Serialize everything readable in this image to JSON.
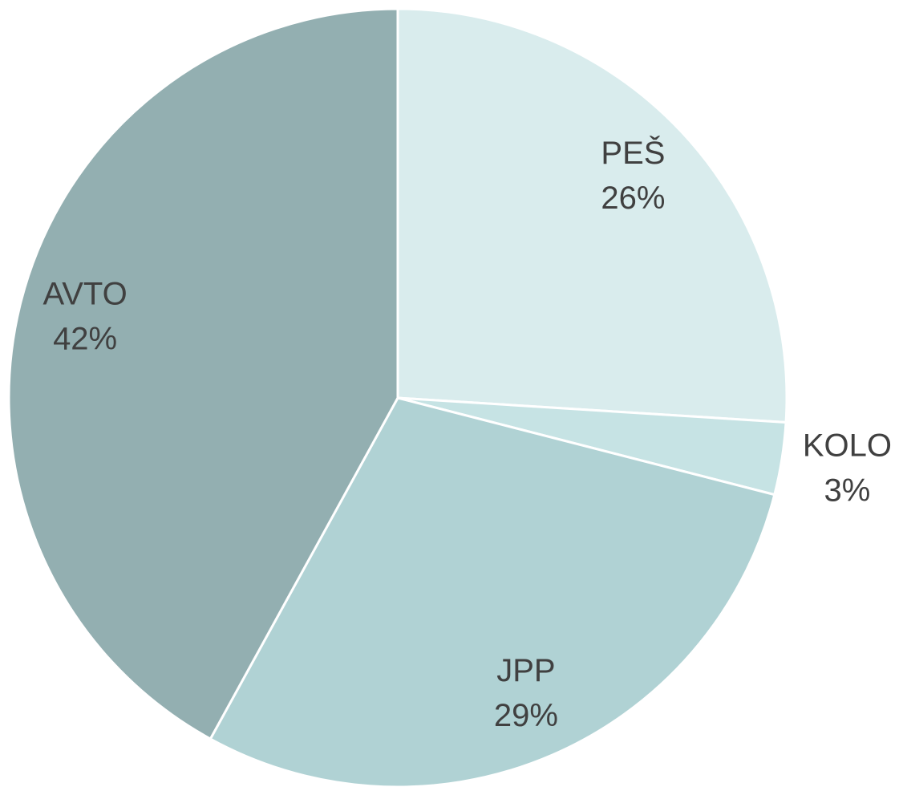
{
  "chart_data": {
    "type": "pie",
    "categories": [
      "PEŠ",
      "KOLO",
      "JPP",
      "AVTO"
    ],
    "values": [
      26,
      3,
      29,
      42
    ],
    "value_labels": [
      "26%",
      "3%",
      "29%",
      "42%"
    ],
    "colors": [
      "#d9eced",
      "#c6e3e4",
      "#b0d2d4",
      "#93afb1"
    ]
  }
}
